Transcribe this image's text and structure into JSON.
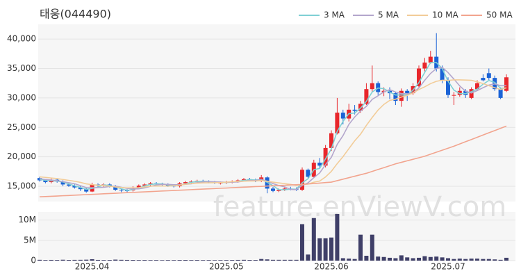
{
  "chart_data": {
    "type": "candlestick",
    "title": "태웅(044490)",
    "watermark": "feature.enViewV.com",
    "legend": "top-right",
    "grid": true,
    "color_up": "#e8262b",
    "color_down": "#1b63d6",
    "categories": [
      null,
      null,
      null,
      null,
      null,
      null,
      null,
      null,
      null,
      "2025.04",
      null,
      null,
      null,
      null,
      null,
      null,
      null,
      null,
      null,
      null,
      null,
      null,
      null,
      null,
      null,
      null,
      null,
      null,
      null,
      null,
      null,
      null,
      "2025.05",
      null,
      null,
      null,
      null,
      null,
      null,
      null,
      null,
      null,
      null,
      null,
      null,
      null,
      null,
      null,
      null,
      null,
      "2025.06",
      null,
      null,
      null,
      null,
      null,
      null,
      null,
      null,
      null,
      null,
      null,
      null,
      null,
      null,
      null,
      null,
      null,
      null,
      null,
      "2025.07",
      null,
      null,
      null,
      null,
      null,
      null,
      null,
      null,
      null,
      null
    ],
    "open": [
      16400,
      16000,
      15700,
      16100,
      15800,
      15300,
      15100,
      14800,
      14500,
      14100,
      15300,
      15100,
      15300,
      15000,
      14400,
      14300,
      14300,
      14800,
      15100,
      15300,
      15500,
      15400,
      15300,
      15100,
      15000,
      15500,
      15700,
      15800,
      15900,
      15800,
      15700,
      15500,
      15600,
      15700,
      15800,
      16000,
      16200,
      16100,
      15900,
      16500,
      14600,
      14200,
      14400,
      14600,
      14500,
      14400,
      17800,
      16600,
      19000,
      18500,
      21500,
      24000,
      27500,
      26500,
      28000,
      27800,
      29000,
      31500,
      32500,
      31000,
      31200,
      30800,
      29500,
      31200,
      30800,
      32000,
      35000,
      36000,
      37000,
      35000,
      33000,
      30500,
      30500,
      31200,
      30000,
      31500,
      33400,
      34200,
      33400,
      31500,
      31200
    ],
    "high": [
      16600,
      16200,
      16300,
      16300,
      16000,
      15500,
      15300,
      15000,
      14700,
      15600,
      15500,
      15500,
      15500,
      15200,
      14600,
      14500,
      15000,
      15300,
      15500,
      15700,
      15700,
      15600,
      15500,
      15300,
      15700,
      15900,
      16000,
      16100,
      16100,
      16000,
      15900,
      15800,
      15900,
      16000,
      16200,
      16400,
      16400,
      16300,
      16900,
      16700,
      14900,
      14600,
      14800,
      14900,
      14800,
      18200,
      18000,
      19500,
      19800,
      22000,
      24500,
      30000,
      28000,
      29000,
      28800,
      29500,
      32500,
      35500,
      32800,
      31800,
      31800,
      31000,
      31600,
      31500,
      32500,
      35500,
      36800,
      38000,
      41000,
      35500,
      33500,
      31000,
      31800,
      31500,
      31800,
      33000,
      34000,
      35000,
      33800,
      31800,
      34000
    ],
    "low": [
      15800,
      15500,
      15500,
      15600,
      15000,
      14900,
      14600,
      14200,
      13900,
      14000,
      14900,
      14900,
      14800,
      14200,
      14000,
      14000,
      14100,
      14600,
      14900,
      15100,
      15200,
      15100,
      14900,
      14800,
      14800,
      15300,
      15500,
      15600,
      15600,
      15500,
      15400,
      15300,
      15400,
      15500,
      15600,
      15800,
      15900,
      15700,
      15700,
      13800,
      14000,
      14000,
      14200,
      14300,
      14200,
      14200,
      16400,
      16400,
      18000,
      18200,
      21000,
      23800,
      25500,
      26000,
      27200,
      27500,
      28800,
      31000,
      30500,
      30300,
      29800,
      28800,
      28500,
      29500,
      30500,
      31800,
      34500,
      35800,
      34500,
      32500,
      30000,
      28800,
      30200,
      30000,
      29800,
      31200,
      32800,
      33000,
      31200,
      29800,
      31000
    ],
    "close": [
      16000,
      15700,
      16100,
      15800,
      15300,
      15100,
      14800,
      14500,
      14100,
      15300,
      15100,
      15300,
      15000,
      14400,
      14300,
      14200,
      14800,
      15100,
      15300,
      15500,
      15400,
      15300,
      15100,
      15000,
      15500,
      15700,
      15800,
      15900,
      15800,
      15700,
      15600,
      15600,
      15700,
      15800,
      16000,
      16200,
      16100,
      15900,
      16500,
      14600,
      14200,
      14400,
      14600,
      14500,
      14400,
      17800,
      16600,
      19000,
      18500,
      21500,
      24000,
      27500,
      26500,
      28000,
      27800,
      29000,
      31500,
      32500,
      31000,
      31200,
      30800,
      29500,
      31200,
      30800,
      32000,
      35000,
      36000,
      37000,
      35000,
      33000,
      30500,
      30500,
      31200,
      30500,
      31500,
      32500,
      33000,
      33400,
      31500,
      30000,
      33500
    ],
    "ylim": [
      12400,
      42500
    ],
    "yticks": [
      {
        "value": 15000,
        "label": "15,000"
      },
      {
        "value": 20000,
        "label": "20,000"
      },
      {
        "value": 25000,
        "label": "25,000"
      },
      {
        "value": 30000,
        "label": "30,000"
      },
      {
        "value": 35000,
        "label": "35,000"
      },
      {
        "value": 40000,
        "label": "40,000"
      }
    ],
    "series": [
      {
        "name": "3 MA",
        "color": "#7fd0d4",
        "values": [
          16200,
          16000,
          15930,
          15870,
          15730,
          15400,
          15070,
          14800,
          14470,
          14630,
          14830,
          15230,
          15130,
          14900,
          14570,
          14300,
          14430,
          14700,
          15070,
          15300,
          15400,
          15400,
          15270,
          15130,
          15200,
          15400,
          15670,
          15800,
          15830,
          15800,
          15700,
          15630,
          15630,
          15700,
          15830,
          16000,
          16100,
          16070,
          16170,
          15670,
          15100,
          14400,
          14400,
          14500,
          14500,
          15570,
          16270,
          17800,
          18030,
          19670,
          21330,
          24330,
          26000,
          27330,
          27430,
          28270,
          29430,
          31000,
          31670,
          31570,
          31000,
          30500,
          30500,
          30500,
          31330,
          32600,
          34330,
          36000,
          36000,
          35000,
          32830,
          31330,
          30730,
          30730,
          31070,
          31500,
          32330,
          32970,
          32630,
          31630,
          31670
        ]
      },
      {
        "name": "5 MA",
        "color": "#b3a6cc",
        "values": [
          16300,
          16150,
          16050,
          15950,
          15780,
          15600,
          15420,
          15100,
          14760,
          14760,
          14760,
          14820,
          14960,
          15020,
          14820,
          14640,
          14540,
          14560,
          14720,
          14980,
          15220,
          15320,
          15320,
          15260,
          15260,
          15320,
          15420,
          15580,
          15740,
          15780,
          15760,
          15720,
          15680,
          15680,
          15740,
          15860,
          15960,
          16000,
          16140,
          15860,
          15460,
          15120,
          14880,
          14460,
          14420,
          15140,
          15580,
          16460,
          17260,
          18680,
          19920,
          22100,
          23600,
          25500,
          26760,
          27760,
          28560,
          29760,
          30360,
          31040,
          31400,
          31000,
          30740,
          30700,
          30860,
          31700,
          33000,
          34160,
          35000,
          35200,
          34300,
          33200,
          32040,
          31140,
          30840,
          31240,
          31740,
          32180,
          32380,
          32080,
          32080
        ]
      },
      {
        "name": "10 MA",
        "color": "#f2cc98",
        "values": [
          16600,
          16500,
          16400,
          16300,
          16150,
          16000,
          15850,
          15650,
          15400,
          15270,
          15180,
          15120,
          15010,
          14870,
          14790,
          14730,
          14730,
          14760,
          14880,
          15020,
          15030,
          15050,
          15030,
          15070,
          15190,
          15340,
          15440,
          15520,
          15560,
          15580,
          15600,
          15630,
          15690,
          15770,
          15810,
          15860,
          15890,
          15890,
          15960,
          15840,
          15700,
          15570,
          15450,
          15310,
          15140,
          15300,
          15370,
          15680,
          15880,
          16580,
          17530,
          18840,
          20030,
          21380,
          22720,
          23840,
          25330,
          26680,
          27930,
          28900,
          29580,
          29780,
          30150,
          30430,
          30850,
          31430,
          31880,
          32430,
          32820,
          33000,
          32970,
          33070,
          33070,
          33040,
          32990,
          32740,
          32440,
          32080,
          31730,
          31430,
          31730
        ]
      },
      {
        "name": "50 MA",
        "color": "#f2a48e",
        "values": [
          13200,
          13250,
          13290,
          13340,
          13390,
          13430,
          13480,
          13530,
          13580,
          13620,
          13670,
          13720,
          13760,
          13810,
          13860,
          13910,
          13950,
          14000,
          14050,
          14090,
          14140,
          14190,
          14230,
          14280,
          14330,
          14370,
          14420,
          14470,
          14520,
          14560,
          14610,
          14660,
          14700,
          14750,
          14800,
          14840,
          14890,
          14940,
          14980,
          15030,
          15080,
          15120,
          15170,
          15220,
          15260,
          15310,
          15380,
          15460,
          15540,
          15620,
          15700,
          15950,
          16200,
          16450,
          16700,
          16950,
          17200,
          17520,
          17840,
          18160,
          18480,
          18800,
          19060,
          19320,
          19580,
          19840,
          20100,
          20440,
          20780,
          21120,
          21460,
          21800,
          22180,
          22560,
          22940,
          23320,
          23700,
          24080,
          24460,
          24840,
          25220
        ]
      }
    ],
    "volume": {
      "color": "#3f3f68",
      "ylim": [
        0,
        12000000
      ],
      "yticks": [
        0,
        {
          "value": 5000000,
          "label": "5M"
        },
        {
          "value": 10000000,
          "label": "10M"
        }
      ],
      "values": [
        200000,
        150000,
        180000,
        160000,
        220000,
        170000,
        190000,
        200000,
        230000,
        350000,
        180000,
        150000,
        160000,
        250000,
        200000,
        180000,
        170000,
        150000,
        160000,
        140000,
        150000,
        130000,
        150000,
        140000,
        160000,
        170000,
        150000,
        160000,
        140000,
        150000,
        130000,
        140000,
        150000,
        160000,
        180000,
        200000,
        170000,
        160000,
        400000,
        300000,
        200000,
        200000,
        200000,
        200000,
        200000,
        9000000,
        1500000,
        10500000,
        5500000,
        5500000,
        5700000,
        11500000,
        600000,
        500000,
        400000,
        6400000,
        1200000,
        6400000,
        1000000,
        900000,
        700000,
        600000,
        1300000,
        800000,
        600000,
        700000,
        1100000,
        900000,
        1000000,
        800000,
        600000,
        400000,
        500000,
        400000,
        500000,
        500000,
        400000,
        400000,
        300000,
        200000,
        700000
      ]
    }
  }
}
